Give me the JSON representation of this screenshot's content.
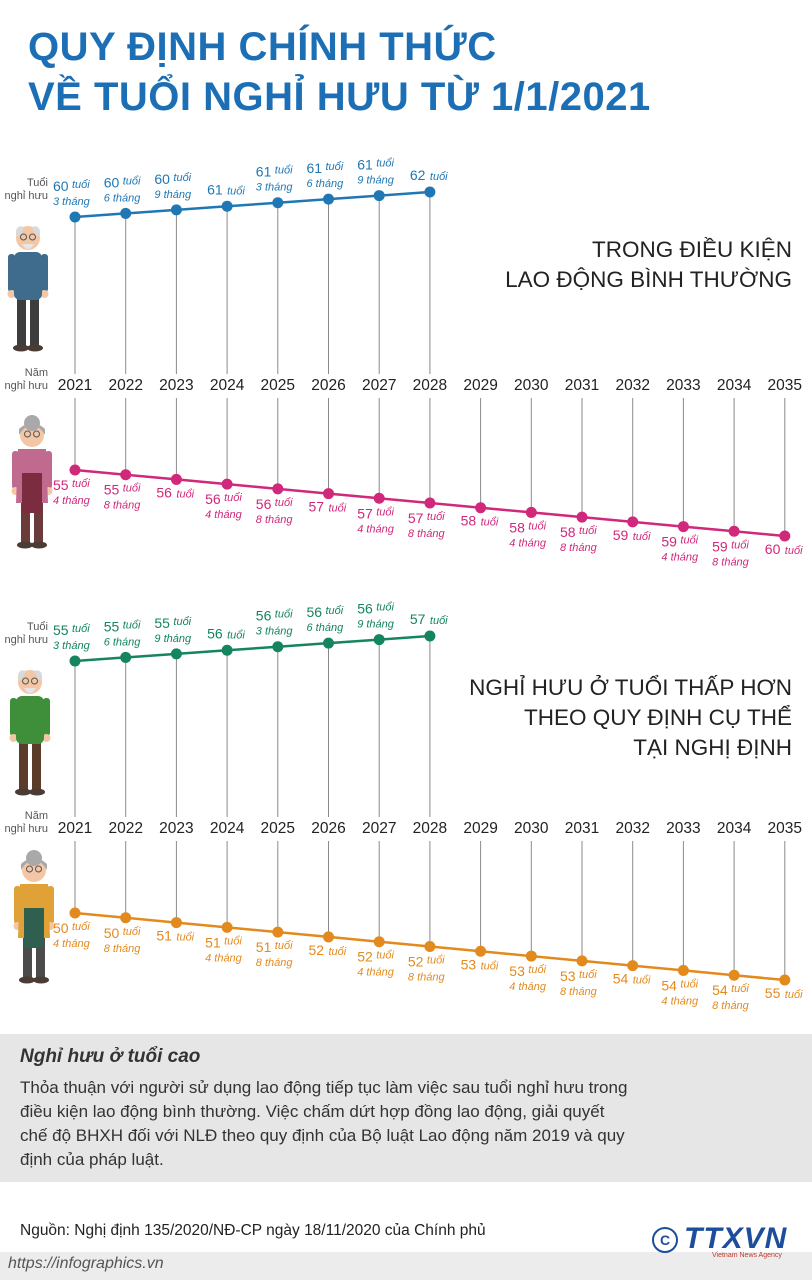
{
  "title_line1": "QUY ĐỊNH CHÍNH THỨC",
  "title_line2": "VỀ TUỔI NGHỈ HƯU TỪ 1/1/2021",
  "colors": {
    "title": "#1d6fb5",
    "male_normal": "#1f78b4",
    "female_normal": "#d0287a",
    "male_early": "#15855e",
    "female_early": "#e38a1e",
    "axis": "#8a8a8a"
  },
  "years": [
    "2021",
    "2022",
    "2023",
    "2024",
    "2025",
    "2026",
    "2027",
    "2028",
    "2029",
    "2030",
    "2031",
    "2032",
    "2033",
    "2034",
    "2035"
  ],
  "axis_label_age": [
    "Tuổi",
    "nghỉ hưu"
  ],
  "axis_label_year": [
    "Năm",
    "nghỉ hưu"
  ],
  "chart_data": [
    {
      "type": "line",
      "title": "TRONG ĐIỀU KIỆN LAO ĐỘNG BÌNH THƯỜNG",
      "title_lines": [
        "TRONG ĐIỀU KIỆN",
        "LAO ĐỘNG BÌNH THƯỜNG"
      ],
      "ylabel": "Tuổi nghỉ hưu",
      "xlabel": "Năm nghỉ hưu",
      "series": [
        {
          "key": "male",
          "x": [
            "2021",
            "2022",
            "2023",
            "2024",
            "2025",
            "2026",
            "2027",
            "2028"
          ],
          "years_value": [
            60,
            60,
            60,
            61,
            61,
            61,
            61,
            62
          ],
          "months_value": [
            3,
            6,
            9,
            0,
            3,
            6,
            9,
            0
          ],
          "labels": [
            [
              "60 tuổi",
              "3 tháng"
            ],
            [
              "60 tuổi",
              "6 tháng"
            ],
            [
              "60 tuổi",
              "9 tháng"
            ],
            [
              "61 tuổi"
            ],
            [
              "61 tuổi",
              "3 tháng"
            ],
            [
              "61 tuổi",
              "6 tháng"
            ],
            [
              "61 tuổi",
              "9 tháng"
            ],
            [
              "62 tuổi"
            ]
          ]
        },
        {
          "key": "female",
          "x": [
            "2021",
            "2022",
            "2023",
            "2024",
            "2025",
            "2026",
            "2027",
            "2028",
            "2029",
            "2030",
            "2031",
            "2032",
            "2033",
            "2034",
            "2035"
          ],
          "years_value": [
            55,
            55,
            56,
            56,
            56,
            57,
            57,
            57,
            58,
            58,
            58,
            59,
            59,
            59,
            60
          ],
          "months_value": [
            4,
            8,
            0,
            4,
            8,
            0,
            4,
            8,
            0,
            4,
            8,
            0,
            4,
            8,
            0
          ],
          "labels": [
            [
              "55 tuổi",
              "4 tháng"
            ],
            [
              "55 tuổi",
              "8 tháng"
            ],
            [
              "56 tuổi"
            ],
            [
              "56 tuổi",
              "4 tháng"
            ],
            [
              "56 tuổi",
              "8 tháng"
            ],
            [
              "57 tuổi"
            ],
            [
              "57 tuổi",
              "4 tháng"
            ],
            [
              "57 tuổi",
              "8 tháng"
            ],
            [
              "58 tuổi"
            ],
            [
              "58 tuổi",
              "4 tháng"
            ],
            [
              "58 tuổi",
              "8 tháng"
            ],
            [
              "59 tuổi"
            ],
            [
              "59 tuổi",
              "4 tháng"
            ],
            [
              "59 tuổi",
              "8 tháng"
            ],
            [
              "60 tuổi"
            ]
          ]
        }
      ]
    },
    {
      "type": "line",
      "title": "NGHỈ HƯU Ở TUỔI THẤP HƠN THEO QUY ĐỊNH CỤ THỂ TẠI NGHỊ ĐỊNH",
      "title_lines": [
        "NGHỈ HƯU Ở TUỔI THẤP HƠN",
        "THEO QUY ĐỊNH CỤ THỂ",
        "TẠI NGHỊ ĐỊNH"
      ],
      "ylabel": "Tuổi nghỉ hưu",
      "xlabel": "Năm nghỉ hưu",
      "series": [
        {
          "key": "male",
          "x": [
            "2021",
            "2022",
            "2023",
            "2024",
            "2025",
            "2026",
            "2027",
            "2028"
          ],
          "years_value": [
            55,
            55,
            55,
            56,
            56,
            56,
            56,
            57
          ],
          "months_value": [
            3,
            6,
            9,
            0,
            3,
            6,
            9,
            0
          ],
          "labels": [
            [
              "55 tuổi",
              "3 tháng"
            ],
            [
              "55 tuổi",
              "6 tháng"
            ],
            [
              "55 tuổi",
              "9 tháng"
            ],
            [
              "56 tuổi"
            ],
            [
              "56 tuổi",
              "3 tháng"
            ],
            [
              "56 tuổi",
              "6 tháng"
            ],
            [
              "56 tuổi",
              "9 tháng"
            ],
            [
              "57 tuổi"
            ]
          ]
        },
        {
          "key": "female",
          "x": [
            "2021",
            "2022",
            "2023",
            "2024",
            "2025",
            "2026",
            "2027",
            "2028",
            "2029",
            "2030",
            "2031",
            "2032",
            "2033",
            "2034",
            "2035"
          ],
          "years_value": [
            50,
            50,
            51,
            51,
            51,
            52,
            52,
            52,
            53,
            53,
            53,
            54,
            54,
            54,
            55
          ],
          "months_value": [
            4,
            8,
            0,
            4,
            8,
            0,
            4,
            8,
            0,
            4,
            8,
            0,
            4,
            8,
            0
          ],
          "labels": [
            [
              "50 tuổi",
              "4 tháng"
            ],
            [
              "50 tuổi",
              "8 tháng"
            ],
            [
              "51 tuổi"
            ],
            [
              "51 tuổi",
              "4 tháng"
            ],
            [
              "51 tuổi",
              "8 tháng"
            ],
            [
              "52 tuổi"
            ],
            [
              "52 tuổi",
              "4 tháng"
            ],
            [
              "52 tuổi",
              "8 tháng"
            ],
            [
              "53 tuổi"
            ],
            [
              "53 tuổi",
              "4 tháng"
            ],
            [
              "53 tuổi",
              "8 tháng"
            ],
            [
              "54 tuổi"
            ],
            [
              "54 tuổi",
              "4 tháng"
            ],
            [
              "54 tuổi",
              "8 tháng"
            ],
            [
              "55 tuổi"
            ]
          ]
        }
      ]
    }
  ],
  "info": {
    "title": "Nghỉ hưu ở tuổi cao",
    "text": "Thỏa thuận với người sử dụng lao động tiếp tục làm việc sau tuổi nghỉ hưu trong điều kiện lao động bình thường. Việc chấm dứt hợp đồng lao động, giải quyết chế độ BHXH đối với NLĐ theo quy định của Bộ luật Lao động năm 2019 và quy định của pháp luật."
  },
  "source": "Nguồn: Nghị định 135/2020/NĐ-CP ngày 18/11/2020 của Chính phủ",
  "footer_url": "https://infographics.vn",
  "logo": {
    "c": "C",
    "name": "TTXVN",
    "sub": "Vietnam News Agency"
  }
}
